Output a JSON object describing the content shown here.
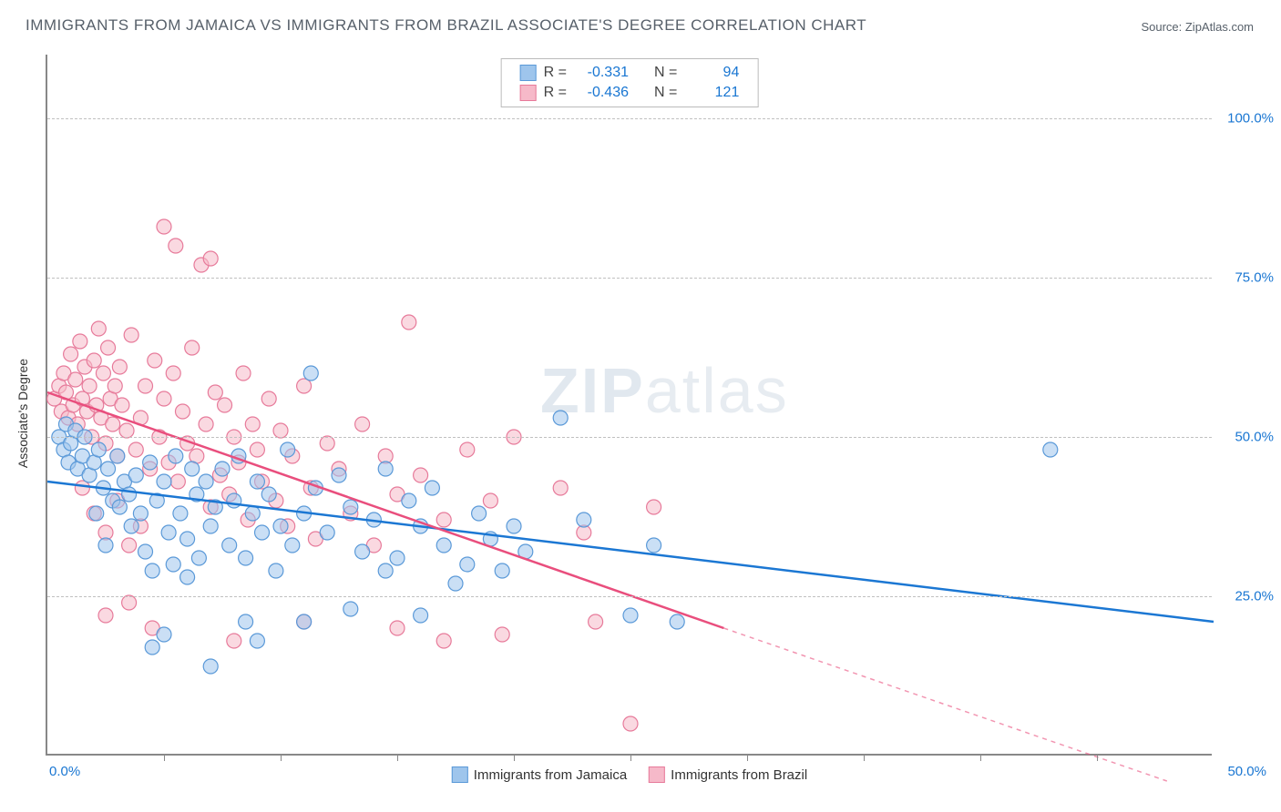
{
  "title": "IMMIGRANTS FROM JAMAICA VS IMMIGRANTS FROM BRAZIL ASSOCIATE'S DEGREE CORRELATION CHART",
  "source": "Source: ZipAtlas.com",
  "watermark_bold": "ZIP",
  "watermark_thin": "atlas",
  "ylabel": "Associate's Degree",
  "chart": {
    "type": "scatter",
    "xlim": [
      0,
      50
    ],
    "ylim": [
      0,
      110
    ],
    "y_gridlines": [
      25,
      50,
      75,
      100
    ],
    "y_tick_labels": [
      "25.0%",
      "50.0%",
      "75.0%",
      "100.0%"
    ],
    "x_tick_labels": {
      "left": "0.0%",
      "right": "50.0%"
    },
    "x_tick_marks": [
      5,
      10,
      15,
      20,
      25,
      30,
      35,
      40,
      45
    ],
    "background_color": "#ffffff",
    "grid_color": "#c0c0c0",
    "axis_color": "#888888",
    "marker_radius": 8,
    "marker_opacity": 0.55,
    "series": [
      {
        "name": "Immigrants from Jamaica",
        "color_fill": "#9ec5ec",
        "color_stroke": "#5a99d8",
        "line_color": "#1b77d3",
        "stats": {
          "R": "-0.331",
          "N": "94"
        },
        "trendline": {
          "x1": 0,
          "y1": 43,
          "x2": 50,
          "y2": 21,
          "dash_from_x": 50
        },
        "points": [
          [
            0.5,
            50
          ],
          [
            0.7,
            48
          ],
          [
            0.8,
            52
          ],
          [
            0.9,
            46
          ],
          [
            1,
            49
          ],
          [
            1.2,
            51
          ],
          [
            1.3,
            45
          ],
          [
            1.5,
            47
          ],
          [
            1.6,
            50
          ],
          [
            1.8,
            44
          ],
          [
            2,
            46
          ],
          [
            2.1,
            38
          ],
          [
            2.2,
            48
          ],
          [
            2.4,
            42
          ],
          [
            2.5,
            33
          ],
          [
            2.6,
            45
          ],
          [
            2.8,
            40
          ],
          [
            3,
            47
          ],
          [
            3.1,
            39
          ],
          [
            3.3,
            43
          ],
          [
            3.5,
            41
          ],
          [
            3.6,
            36
          ],
          [
            3.8,
            44
          ],
          [
            4,
            38
          ],
          [
            4.2,
            32
          ],
          [
            4.4,
            46
          ],
          [
            4.5,
            29
          ],
          [
            4.7,
            40
          ],
          [
            5,
            43
          ],
          [
            5.2,
            35
          ],
          [
            5.4,
            30
          ],
          [
            5.5,
            47
          ],
          [
            5.7,
            38
          ],
          [
            6,
            34
          ],
          [
            6.2,
            45
          ],
          [
            6.4,
            41
          ],
          [
            6.5,
            31
          ],
          [
            6.8,
            43
          ],
          [
            7,
            36
          ],
          [
            7.2,
            39
          ],
          [
            7.5,
            45
          ],
          [
            7.8,
            33
          ],
          [
            8,
            40
          ],
          [
            8.2,
            47
          ],
          [
            8.5,
            31
          ],
          [
            8.8,
            38
          ],
          [
            9,
            43
          ],
          [
            9.2,
            35
          ],
          [
            9.5,
            41
          ],
          [
            9.8,
            29
          ],
          [
            4.5,
            17
          ],
          [
            5.0,
            19
          ],
          [
            6.0,
            28
          ],
          [
            7.0,
            14
          ],
          [
            8.5,
            21
          ],
          [
            9.0,
            18
          ],
          [
            10,
            36
          ],
          [
            10.3,
            48
          ],
          [
            10.5,
            33
          ],
          [
            11,
            38
          ],
          [
            11.3,
            60
          ],
          [
            11.5,
            42
          ],
          [
            12,
            35
          ],
          [
            12.5,
            44
          ],
          [
            13,
            39
          ],
          [
            13.5,
            32
          ],
          [
            14,
            37
          ],
          [
            14.5,
            45
          ],
          [
            15,
            31
          ],
          [
            15.5,
            40
          ],
          [
            16,
            36
          ],
          [
            16.5,
            42
          ],
          [
            17,
            33
          ],
          [
            18,
            30
          ],
          [
            18.5,
            38
          ],
          [
            19,
            34
          ],
          [
            19.5,
            29
          ],
          [
            20,
            36
          ],
          [
            20.5,
            32
          ],
          [
            22,
            53
          ],
          [
            23,
            37
          ],
          [
            25,
            22
          ],
          [
            26,
            33
          ],
          [
            27,
            21
          ],
          [
            43,
            48
          ],
          [
            11,
            21
          ],
          [
            13,
            23
          ],
          [
            14.5,
            29
          ],
          [
            16,
            22
          ],
          [
            17.5,
            27
          ]
        ]
      },
      {
        "name": "Immigrants from Brazil",
        "color_fill": "#f6b9c9",
        "color_stroke": "#e77a9a",
        "line_color": "#e94e7d",
        "stats": {
          "R": "-0.436",
          "N": "121"
        },
        "trendline": {
          "x1": 0,
          "y1": 57,
          "x2": 29,
          "y2": 20,
          "dash_from_x": 29,
          "dash_to": [
            48,
            -4
          ]
        },
        "points": [
          [
            0.3,
            56
          ],
          [
            0.5,
            58
          ],
          [
            0.6,
            54
          ],
          [
            0.7,
            60
          ],
          [
            0.8,
            57
          ],
          [
            0.9,
            53
          ],
          [
            1,
            63
          ],
          [
            1.1,
            55
          ],
          [
            1.2,
            59
          ],
          [
            1.3,
            52
          ],
          [
            1.4,
            65
          ],
          [
            1.5,
            56
          ],
          [
            1.6,
            61
          ],
          [
            1.7,
            54
          ],
          [
            1.8,
            58
          ],
          [
            1.9,
            50
          ],
          [
            2,
            62
          ],
          [
            2.1,
            55
          ],
          [
            2.2,
            67
          ],
          [
            2.3,
            53
          ],
          [
            2.4,
            60
          ],
          [
            2.5,
            49
          ],
          [
            2.6,
            64
          ],
          [
            2.7,
            56
          ],
          [
            2.8,
            52
          ],
          [
            2.9,
            58
          ],
          [
            3,
            47
          ],
          [
            3.1,
            61
          ],
          [
            3.2,
            55
          ],
          [
            3.4,
            51
          ],
          [
            3.6,
            66
          ],
          [
            3.8,
            48
          ],
          [
            4,
            53
          ],
          [
            4.2,
            58
          ],
          [
            4.4,
            45
          ],
          [
            4.6,
            62
          ],
          [
            4.8,
            50
          ],
          [
            5,
            56
          ],
          [
            5.2,
            46
          ],
          [
            5.4,
            60
          ],
          [
            5.6,
            43
          ],
          [
            5.8,
            54
          ],
          [
            6,
            49
          ],
          [
            6.2,
            64
          ],
          [
            6.4,
            47
          ],
          [
            6.6,
            77
          ],
          [
            6.8,
            52
          ],
          [
            7,
            39
          ],
          [
            7.2,
            57
          ],
          [
            7.4,
            44
          ],
          [
            1.5,
            42
          ],
          [
            2.0,
            38
          ],
          [
            2.5,
            35
          ],
          [
            3.0,
            40
          ],
          [
            3.5,
            33
          ],
          [
            4.0,
            36
          ],
          [
            2.5,
            22
          ],
          [
            3.5,
            24
          ],
          [
            4.5,
            20
          ],
          [
            5.0,
            83
          ],
          [
            5.5,
            80
          ],
          [
            7.0,
            78
          ],
          [
            7.6,
            55
          ],
          [
            7.8,
            41
          ],
          [
            8,
            50
          ],
          [
            8.2,
            46
          ],
          [
            8.4,
            60
          ],
          [
            8.6,
            37
          ],
          [
            8.8,
            52
          ],
          [
            9,
            48
          ],
          [
            9.2,
            43
          ],
          [
            9.5,
            56
          ],
          [
            9.8,
            40
          ],
          [
            10,
            51
          ],
          [
            10.3,
            36
          ],
          [
            10.5,
            47
          ],
          [
            11,
            58
          ],
          [
            11.3,
            42
          ],
          [
            11.5,
            34
          ],
          [
            12,
            49
          ],
          [
            12.5,
            45
          ],
          [
            13,
            38
          ],
          [
            13.5,
            52
          ],
          [
            14,
            33
          ],
          [
            14.5,
            47
          ],
          [
            15,
            41
          ],
          [
            15.5,
            68
          ],
          [
            16,
            44
          ],
          [
            17,
            37
          ],
          [
            18,
            48
          ],
          [
            19,
            40
          ],
          [
            8.0,
            18
          ],
          [
            11.0,
            21
          ],
          [
            15.0,
            20
          ],
          [
            17.0,
            18
          ],
          [
            19.5,
            19
          ],
          [
            23.5,
            21
          ],
          [
            25,
            5
          ],
          [
            20,
            50
          ],
          [
            22,
            42
          ],
          [
            23,
            35
          ],
          [
            26,
            39
          ]
        ]
      }
    ]
  }
}
